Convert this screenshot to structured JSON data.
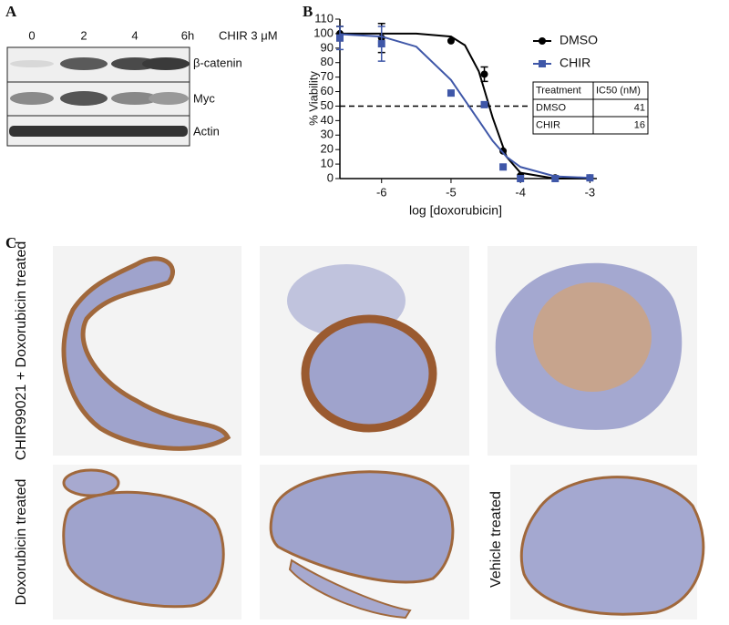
{
  "panel_labels": [
    "A",
    "B",
    "C"
  ],
  "panel_a": {
    "treatment": "CHIR 3 μM",
    "lanes": [
      "0",
      "2",
      "4",
      "6h"
    ],
    "bands": [
      "β-catenin",
      "Myc",
      "Actin"
    ]
  },
  "chart_data": {
    "type": "dose-response",
    "xlabel": "log [doxorubicin]",
    "ylabel": "% Viability",
    "xlim": [
      -6.6,
      -2.9
    ],
    "xticks": [
      -6,
      -5,
      -4,
      -3
    ],
    "ylim": [
      0,
      110
    ],
    "yticks": [
      0,
      10,
      20,
      30,
      40,
      50,
      60,
      70,
      80,
      90,
      100,
      110
    ],
    "threshold": 50,
    "x": [
      -6.6,
      -6,
      -5,
      -4.52,
      -4.25,
      -4,
      -3.5,
      -3
    ],
    "fit_x": [
      -6.6,
      -6,
      -5.5,
      -5,
      -4.8,
      -4.6,
      -4.4,
      -4.2,
      -4,
      -3.5,
      -3
    ],
    "series": [
      {
        "name": "DMSO",
        "color": "#000000",
        "marker": "circle",
        "values": [
          100,
          97,
          95,
          72,
          19,
          2,
          0.5,
          0.5
        ],
        "errors": [
          5,
          10,
          null,
          5,
          null,
          null,
          null,
          null
        ],
        "fit_values": [
          100,
          100,
          100,
          98,
          92,
          74,
          42,
          15,
          4,
          0,
          0
        ]
      },
      {
        "name": "CHIR",
        "color": "#3f57a8",
        "marker": "square",
        "values": [
          97,
          93,
          59,
          51,
          8,
          0,
          0,
          0.5
        ],
        "errors": [
          8,
          12,
          null,
          null,
          null,
          null,
          null,
          null
        ],
        "fit_values": [
          99.6,
          98,
          91,
          68,
          54,
          40,
          26,
          15,
          8,
          1.5,
          0.5
        ]
      }
    ],
    "table": {
      "header": [
        "Treatment",
        "IC50 (nM)"
      ],
      "rows": [
        [
          "DMSO",
          "41"
        ],
        [
          "CHIR",
          "16"
        ]
      ]
    }
  },
  "panel_c": {
    "row_labels": [
      "CHIR99021 + Doxorubicin treated",
      "Doxorubicin treated",
      "Vehicle treated"
    ]
  }
}
